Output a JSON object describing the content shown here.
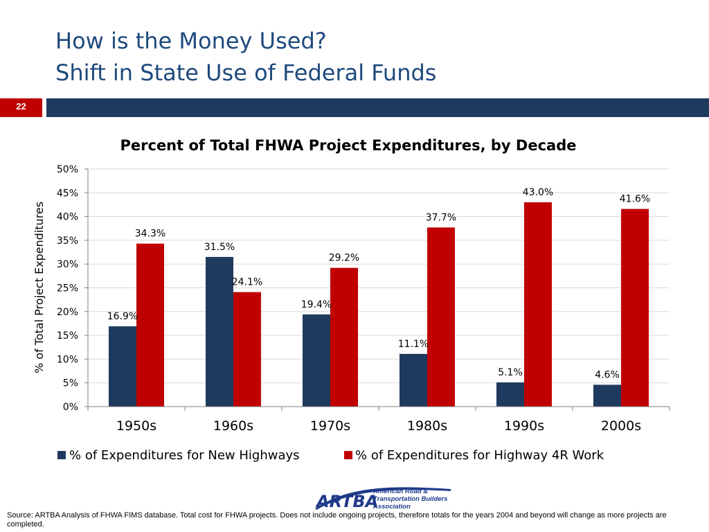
{
  "slide": {
    "title_line1": "How is the Money Used?",
    "title_line2": "Shift in State Use of Federal Funds",
    "number": "22",
    "source": "Source: ARTBA Analysis of FHWA FIMS database.  Total cost for FHWA projects.  Does not include ongoing projects, therefore totals for the years 2004 and beyond will change as more projects are completed.",
    "logo": {
      "letters": "ARTBA",
      "line1": "American Road &",
      "line2": "Transportation Builders",
      "line3": "Association"
    }
  },
  "colors": {
    "title": "#1f497d",
    "band": "#1f3a5f",
    "slide_number": "#c00000",
    "new_highways": "#1f3a5f",
    "highway_4r": "#c00000"
  },
  "chart_data": {
    "type": "bar",
    "title": "Percent of Total FHWA Project Expenditures, by Decade",
    "ylabel": "% of Total Project Expenditures",
    "xlabel": "",
    "categories": [
      "1950s",
      "1960s",
      "1970s",
      "1980s",
      "1990s",
      "2000s"
    ],
    "y_ticks": [
      "0%",
      "5%",
      "10%",
      "15%",
      "20%",
      "25%",
      "30%",
      "35%",
      "40%",
      "45%",
      "50%"
    ],
    "ylim": [
      0,
      50
    ],
    "grid": true,
    "legend_position": "bottom",
    "series": [
      {
        "name": "% of Expenditures for New Highways",
        "values": [
          16.9,
          31.5,
          19.4,
          11.1,
          5.1,
          4.6
        ],
        "labels": [
          "16.9%",
          "31.5%",
          "19.4%",
          "11.1%",
          "5.1%",
          "4.6%"
        ]
      },
      {
        "name": "% of Expenditures for Highway 4R Work",
        "values": [
          34.3,
          24.1,
          29.2,
          37.7,
          43.0,
          41.6
        ],
        "labels": [
          "34.3%",
          "24.1%",
          "29.2%",
          "37.7%",
          "43.0%",
          "41.6%"
        ]
      }
    ]
  }
}
